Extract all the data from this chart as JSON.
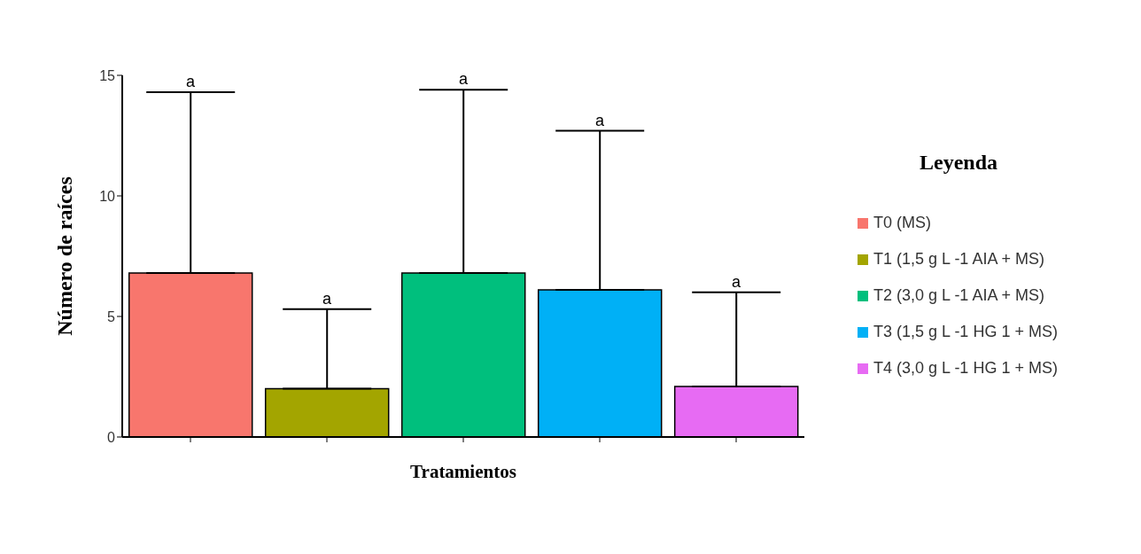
{
  "chart_data": {
    "type": "bar",
    "xlabel": "Tratamientos",
    "ylabel": "Número de raíces",
    "legend_title": "Leyenda",
    "legend": "right",
    "stacked": true,
    "categories": [
      null,
      null,
      null,
      null,
      null
    ],
    "ylim": [
      0,
      15
    ],
    "yticks": [
      0,
      5,
      10,
      15
    ],
    "series": [
      {
        "name": "T0 (MS)",
        "color": "#f8766d",
        "values": [
          6.8,
          null,
          null,
          null,
          null
        ],
        "errors": [
          [
            6.8,
            14.3
          ],
          null,
          null,
          null,
          null
        ]
      },
      {
        "name": "T1 (1,5 g L -1 AIA + MS)",
        "color": "#a3a500",
        "values": [
          null,
          2.0,
          null,
          null,
          null
        ],
        "errors": [
          null,
          [
            2.0,
            5.3
          ],
          null,
          null,
          null
        ]
      },
      {
        "name": "T2 (3,0 g L -1 AIA + MS)",
        "color": "#00bf7d",
        "values": [
          null,
          null,
          6.8,
          null,
          null
        ],
        "errors": [
          null,
          null,
          [
            6.8,
            14.4
          ],
          null,
          null
        ]
      },
      {
        "name": "T3 (1,5 g L -1 HG 1 + MS)",
        "color": "#00b0f6",
        "values": [
          null,
          null,
          null,
          6.1,
          null
        ],
        "errors": [
          null,
          null,
          null,
          [
            6.1,
            12.7
          ],
          null
        ]
      },
      {
        "name": "T4 (3,0 g L -1 HG 1 + MS)",
        "color": "#e76bf3",
        "values": [
          null,
          null,
          null,
          null,
          2.1
        ],
        "errors": [
          null,
          null,
          null,
          null,
          [
            2.1,
            6.0
          ]
        ]
      }
    ],
    "annotations": [
      "a",
      "a",
      "a",
      "a",
      "a"
    ]
  }
}
